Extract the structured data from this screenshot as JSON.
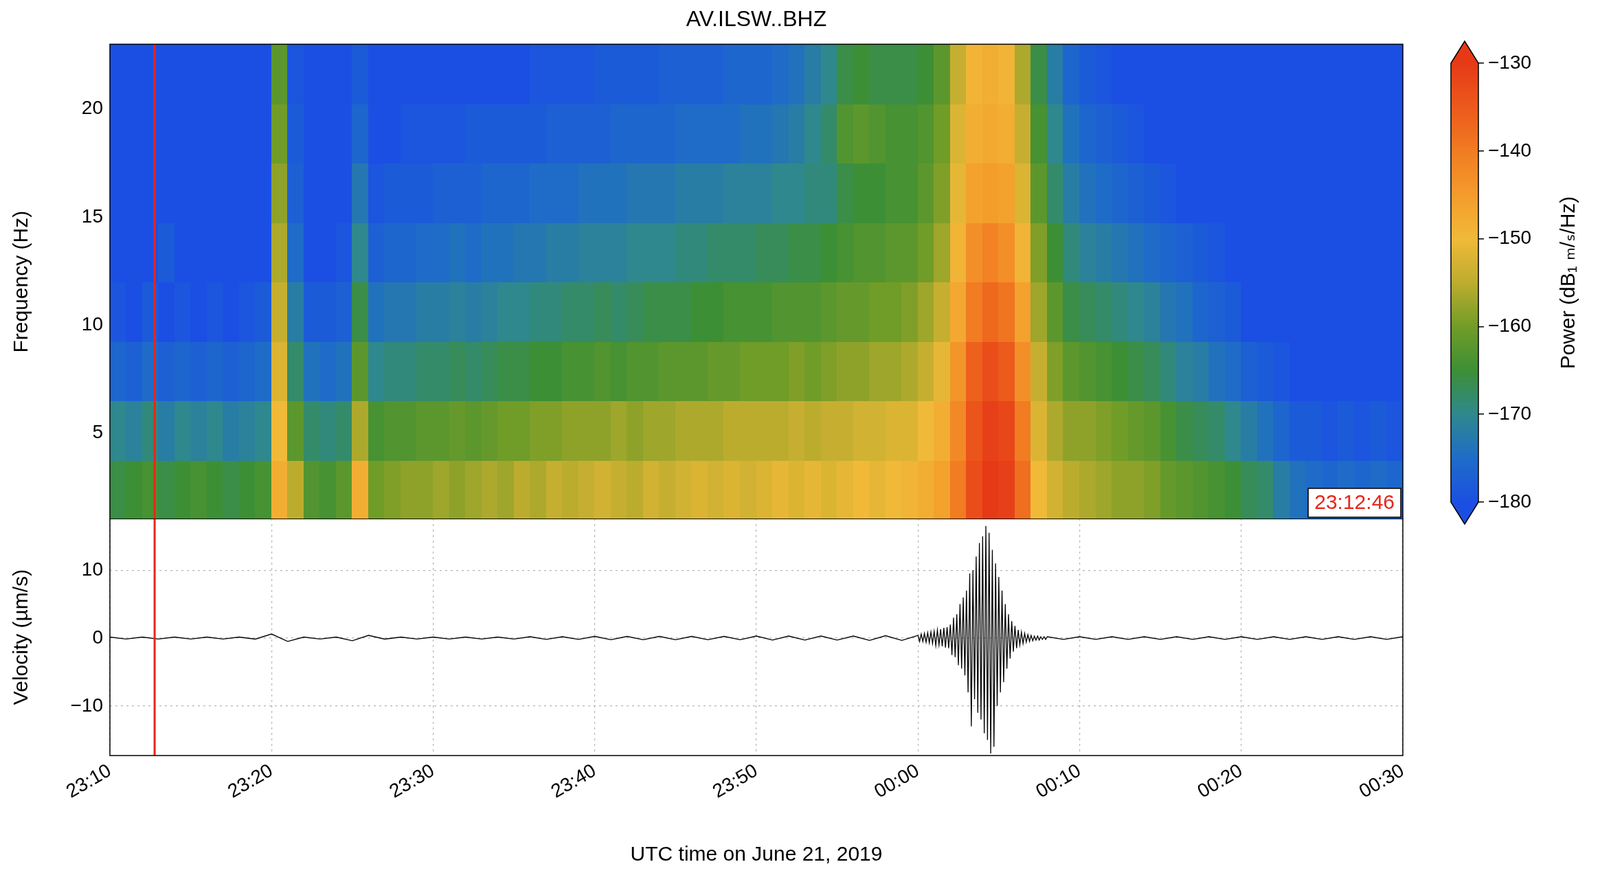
{
  "chart_data": [
    {
      "type": "heatmap",
      "title": "AV.ILSW..BHZ",
      "y_label": "Frequency (Hz)",
      "x_bins": [
        0,
        1,
        2,
        3,
        4,
        5,
        6,
        7,
        8,
        9,
        10,
        11,
        12,
        13,
        14,
        15,
        16,
        17,
        18,
        19,
        20,
        21,
        22,
        23,
        24,
        25,
        26,
        27,
        28,
        29,
        30,
        31,
        32,
        33,
        34,
        35,
        36,
        37,
        38,
        39,
        40,
        41,
        42,
        43,
        44,
        45,
        46,
        47,
        48,
        49,
        50,
        51,
        52,
        53,
        54,
        55,
        56,
        57,
        58,
        59,
        60,
        61,
        62,
        63,
        64,
        65,
        66,
        67,
        68,
        69,
        70,
        71,
        72,
        73,
        74,
        75,
        76,
        77,
        78,
        79,
        80
      ],
      "y_bins": [
        1,
        3.75,
        6.5,
        9.25,
        12,
        14.75,
        17.5,
        20.25,
        23
      ],
      "cells": [
        [
          -166,
          -165,
          -164,
          -166,
          -165,
          -164,
          -165,
          -166,
          -165,
          -164,
          -148,
          -155,
          -163,
          -164,
          -162,
          -148,
          -160,
          -159,
          -158,
          -158,
          -157,
          -158,
          -157,
          -156,
          -157,
          -155,
          -156,
          -154,
          -155,
          -154,
          -153,
          -154,
          -155,
          -153,
          -154,
          -153,
          -152,
          -153,
          -152,
          -153,
          -152,
          -151,
          -152,
          -151,
          -152,
          -151,
          -150,
          -151,
          -150,
          -149,
          -148,
          -146,
          -140,
          -133,
          -130,
          -131,
          -138,
          -150,
          -153,
          -155,
          -156,
          -157,
          -158,
          -158,
          -159,
          -161,
          -162,
          -163,
          -164,
          -165,
          -167,
          -168,
          -172,
          -174,
          -175,
          -176,
          -175,
          -176,
          -175,
          -176
        ],
        [
          -170,
          -171,
          -169,
          -172,
          -170,
          -171,
          -170,
          -172,
          -171,
          -170,
          -150,
          -162,
          -168,
          -169,
          -168,
          -156,
          -164,
          -163,
          -163,
          -162,
          -162,
          -161,
          -162,
          -161,
          -160,
          -160,
          -159,
          -159,
          -158,
          -158,
          -158,
          -157,
          -158,
          -157,
          -157,
          -156,
          -156,
          -156,
          -155,
          -155,
          -155,
          -155,
          -154,
          -155,
          -154,
          -154,
          -153,
          -153,
          -152,
          -152,
          -150,
          -148,
          -142,
          -134,
          -131,
          -132,
          -140,
          -152,
          -156,
          -158,
          -158,
          -159,
          -160,
          -161,
          -162,
          -164,
          -166,
          -167,
          -168,
          -170,
          -172,
          -174,
          -176,
          -178,
          -178,
          -179,
          -178,
          -179,
          -178,
          -179
        ],
        [
          -176,
          -177,
          -175,
          -177,
          -176,
          -177,
          -176,
          -177,
          -176,
          -175,
          -152,
          -168,
          -174,
          -175,
          -174,
          -162,
          -170,
          -169,
          -169,
          -168,
          -168,
          -167,
          -168,
          -167,
          -166,
          -166,
          -165,
          -165,
          -164,
          -164,
          -163,
          -164,
          -163,
          -163,
          -162,
          -162,
          -162,
          -161,
          -161,
          -160,
          -160,
          -160,
          -159,
          -160,
          -159,
          -158,
          -158,
          -157,
          -157,
          -156,
          -154,
          -151,
          -144,
          -136,
          -133,
          -135,
          -143,
          -154,
          -159,
          -162,
          -163,
          -164,
          -165,
          -166,
          -167,
          -169,
          -171,
          -172,
          -174,
          -175,
          -177,
          -178,
          -179,
          -180,
          -180,
          -180,
          -180,
          -180,
          -180,
          -180
        ],
        [
          -179,
          -180,
          -178,
          -180,
          -179,
          -180,
          -179,
          -180,
          -179,
          -178,
          -154,
          -172,
          -178,
          -178,
          -177,
          -166,
          -174,
          -173,
          -173,
          -172,
          -172,
          -171,
          -172,
          -171,
          -170,
          -170,
          -169,
          -169,
          -168,
          -168,
          -167,
          -168,
          -167,
          -166,
          -166,
          -166,
          -165,
          -165,
          -164,
          -164,
          -164,
          -163,
          -163,
          -163,
          -162,
          -161,
          -161,
          -160,
          -160,
          -159,
          -157,
          -154,
          -147,
          -140,
          -137,
          -139,
          -146,
          -157,
          -162,
          -166,
          -167,
          -168,
          -169,
          -170,
          -171,
          -173,
          -174,
          -176,
          -177,
          -178,
          -180,
          -180,
          -180,
          -180,
          -180,
          -180,
          -180,
          -180,
          -180,
          -180
        ],
        [
          -180,
          -180,
          -180,
          -178,
          -180,
          -180,
          -180,
          -180,
          -180,
          -180,
          -156,
          -175,
          -180,
          -180,
          -179,
          -170,
          -177,
          -176,
          -176,
          -175,
          -175,
          -174,
          -175,
          -174,
          -174,
          -173,
          -173,
          -172,
          -172,
          -171,
          -171,
          -171,
          -170,
          -170,
          -170,
          -169,
          -169,
          -168,
          -168,
          -168,
          -167,
          -167,
          -166,
          -166,
          -165,
          -164,
          -163,
          -163,
          -162,
          -162,
          -160,
          -157,
          -149,
          -143,
          -141,
          -143,
          -149,
          -159,
          -165,
          -169,
          -171,
          -172,
          -173,
          -174,
          -175,
          -176,
          -177,
          -178,
          -179,
          -180,
          -180,
          -180,
          -180,
          -180,
          -180,
          -180,
          -180,
          -180,
          -180,
          -180
        ],
        [
          -180,
          -180,
          -180,
          -180,
          -180,
          -180,
          -180,
          -180,
          -180,
          -180,
          -158,
          -177,
          -180,
          -180,
          -180,
          -173,
          -179,
          -178,
          -178,
          -178,
          -177,
          -177,
          -177,
          -176,
          -176,
          -176,
          -175,
          -175,
          -175,
          -174,
          -174,
          -174,
          -173,
          -173,
          -173,
          -172,
          -172,
          -172,
          -171,
          -171,
          -171,
          -170,
          -170,
          -169,
          -169,
          -166,
          -165,
          -165,
          -164,
          -164,
          -162,
          -159,
          -151,
          -146,
          -145,
          -146,
          -152,
          -162,
          -168,
          -172,
          -174,
          -175,
          -176,
          -177,
          -178,
          -179,
          -180,
          -180,
          -180,
          -180,
          -180,
          -180,
          -180,
          -180,
          -180,
          -180,
          -180,
          -180,
          -180,
          -180
        ],
        [
          -180,
          -180,
          -180,
          -180,
          -180,
          -180,
          -180,
          -180,
          -180,
          -180,
          -160,
          -178,
          -180,
          -180,
          -180,
          -176,
          -180,
          -180,
          -179,
          -179,
          -179,
          -179,
          -178,
          -178,
          -178,
          -178,
          -178,
          -177,
          -177,
          -177,
          -177,
          -176,
          -176,
          -176,
          -176,
          -175,
          -175,
          -175,
          -175,
          -174,
          -174,
          -173,
          -172,
          -170,
          -168,
          -163,
          -162,
          -163,
          -164,
          -164,
          -163,
          -160,
          -152,
          -148,
          -147,
          -148,
          -154,
          -164,
          -170,
          -174,
          -176,
          -177,
          -178,
          -179,
          -180,
          -180,
          -180,
          -180,
          -180,
          -180,
          -180,
          -180,
          -180,
          -180,
          -180,
          -180,
          -180,
          -180,
          -180,
          -180
        ],
        [
          -180,
          -180,
          -180,
          -180,
          -180,
          -180,
          -180,
          -180,
          -180,
          -180,
          -162,
          -179,
          -180,
          -180,
          -180,
          -178,
          -180,
          -180,
          -180,
          -180,
          -180,
          -180,
          -180,
          -180,
          -180,
          -180,
          -179,
          -179,
          -179,
          -179,
          -178,
          -178,
          -178,
          -178,
          -177,
          -177,
          -177,
          -177,
          -176,
          -176,
          -176,
          -175,
          -174,
          -172,
          -170,
          -166,
          -165,
          -166,
          -166,
          -166,
          -165,
          -162,
          -154,
          -149,
          -148,
          -149,
          -156,
          -166,
          -172,
          -176,
          -178,
          -179,
          -180,
          -180,
          -180,
          -180,
          -180,
          -180,
          -180,
          -180,
          -180,
          -180,
          -180,
          -180,
          -180,
          -180,
          -180,
          -180,
          -180,
          -180
        ]
      ],
      "xlim": [
        0,
        80
      ],
      "xticks": [
        {
          "value": 0,
          "label": "23:10"
        },
        {
          "value": 10,
          "label": "23:20"
        },
        {
          "value": 20,
          "label": "23:30"
        },
        {
          "value": 30,
          "label": "23:40"
        },
        {
          "value": 40,
          "label": "23:50"
        },
        {
          "value": 50,
          "label": "00:00"
        },
        {
          "value": 60,
          "label": "00:10"
        },
        {
          "value": 70,
          "label": "00:20"
        },
        {
          "value": 80,
          "label": "00:30"
        }
      ],
      "ylim": [
        1,
        23
      ],
      "yticks": [
        5,
        10,
        15,
        20
      ],
      "grid": true,
      "tick_labels": "y",
      "colorbar": {
        "label": "Power (dB₁ ₘ/ₛ/Hz)",
        "range": [
          -180,
          -130
        ],
        "ticks": [
          {
            "value": -180,
            "label": "−180"
          },
          {
            "value": -170,
            "label": "−170"
          },
          {
            "value": -160,
            "label": "−160"
          },
          {
            "value": -150,
            "label": "−150"
          },
          {
            "value": -140,
            "label": "−140"
          },
          {
            "value": -130,
            "label": "−130"
          }
        ]
      },
      "annotations": [
        {
          "text": "23:12:46",
          "x": 2.7667,
          "color": "#e8251b"
        }
      ]
    },
    {
      "type": "line",
      "x_label": "UTC time on June 21, 2019",
      "y_label": "Velocity (µm/s)",
      "x": [
        0,
        1,
        2,
        3,
        4,
        5,
        6,
        7,
        8,
        9,
        10,
        11,
        12,
        13,
        14,
        15,
        16,
        17,
        18,
        19,
        20,
        21,
        22,
        23,
        24,
        25,
        26,
        27,
        28,
        29,
        30,
        31,
        32,
        33,
        34,
        35,
        36,
        37,
        38,
        39,
        40,
        41,
        42,
        43,
        44,
        45,
        46,
        47,
        48,
        49,
        50,
        50.1,
        50.2,
        50.3,
        50.4,
        50.5,
        50.6,
        50.7,
        50.8,
        50.9,
        51,
        51.1,
        51.2,
        51.3,
        51.4,
        51.5,
        51.6,
        51.7,
        51.8,
        51.9,
        52,
        52.1,
        52.2,
        52.3,
        52.4,
        52.5,
        52.6,
        52.7,
        52.8,
        52.9,
        53,
        53.1,
        53.2,
        53.3,
        53.4,
        53.5,
        53.6,
        53.7,
        53.8,
        53.9,
        54,
        54.1,
        54.2,
        54.3,
        54.4,
        54.5,
        54.6,
        54.7,
        54.8,
        54.9,
        55,
        55.1,
        55.2,
        55.3,
        55.4,
        55.5,
        55.6,
        55.7,
        55.8,
        55.9,
        56,
        56.1,
        56.2,
        56.3,
        56.4,
        56.5,
        56.6,
        56.7,
        56.8,
        56.9,
        57,
        57.1,
        57.2,
        57.3,
        57.4,
        57.5,
        57.6,
        57.7,
        57.8,
        57.9,
        58,
        59,
        60,
        61,
        62,
        63,
        64,
        65,
        66,
        67,
        68,
        69,
        70,
        71,
        72,
        73,
        74,
        75,
        76,
        77,
        78,
        79,
        80
      ],
      "values": [
        0.15,
        -0.15,
        0.15,
        -0.15,
        0.15,
        -0.15,
        0.15,
        -0.15,
        0.15,
        -0.15,
        0.6,
        -0.5,
        0.15,
        -0.15,
        0.15,
        -0.4,
        0.4,
        -0.15,
        0.15,
        -0.15,
        0.15,
        -0.15,
        0.15,
        -0.15,
        0.15,
        -0.15,
        0.2,
        -0.2,
        0.2,
        -0.2,
        0.25,
        -0.25,
        0.25,
        -0.25,
        0.25,
        -0.25,
        0.25,
        -0.25,
        0.25,
        -0.25,
        0.3,
        -0.3,
        0.3,
        -0.3,
        0.3,
        -0.3,
        0.3,
        -0.35,
        0.35,
        -0.35,
        0.4,
        -0.5,
        0.6,
        -0.5,
        0.7,
        -0.6,
        0.8,
        -0.7,
        0.9,
        -0.8,
        1.0,
        -1.1,
        1.2,
        -1.0,
        1.3,
        -1.2,
        1.5,
        -1.4,
        1.6,
        -1.5,
        2.0,
        -2.5,
        3.0,
        -2.8,
        3.5,
        -4.0,
        5.0,
        -4.5,
        6.0,
        -5.5,
        7.0,
        -8.0,
        9.5,
        -13.0,
        10.0,
        -9.0,
        12.0,
        -11.0,
        14.0,
        -12.0,
        15.0,
        -14.0,
        16.5,
        -15.0,
        15.5,
        -17.0,
        13.0,
        -16.0,
        11.0,
        -10.0,
        9.0,
        -8.0,
        7.0,
        -6.5,
        5.0,
        -4.5,
        3.5,
        -3.0,
        2.5,
        -2.0,
        1.8,
        -1.5,
        1.2,
        -1.0,
        0.9,
        -0.8,
        0.7,
        -0.6,
        0.5,
        -0.5,
        0.4,
        -0.4,
        0.3,
        -0.3,
        0.3,
        -0.3,
        0.2,
        -0.2,
        0.2,
        -0.2,
        0.2,
        -0.2,
        0.2,
        -0.2,
        0.2,
        -0.2,
        0.2,
        -0.2,
        0.2,
        -0.2,
        0.2,
        -0.2,
        0.2,
        -0.2,
        0.2,
        -0.2,
        0.2,
        -0.2,
        0.2,
        -0.2,
        0.2,
        -0.2,
        0.2
      ],
      "color": "#000000",
      "xlim": [
        0,
        80
      ],
      "xticks": [
        {
          "value": 0,
          "label": "23:10"
        },
        {
          "value": 10,
          "label": "23:20"
        },
        {
          "value": 20,
          "label": "23:30"
        },
        {
          "value": 30,
          "label": "23:40"
        },
        {
          "value": 40,
          "label": "23:50"
        },
        {
          "value": 50,
          "label": "00:00"
        },
        {
          "value": 60,
          "label": "00:10"
        },
        {
          "value": 70,
          "label": "00:20"
        },
        {
          "value": 80,
          "label": "00:30"
        }
      ],
      "ylim": [
        -17.3,
        17.6
      ],
      "yticks": [
        {
          "value": -10,
          "label": "−10"
        },
        0,
        10
      ],
      "grid": true,
      "annotations": [
        {
          "x": 2.7667,
          "color": "#e8251b"
        }
      ]
    }
  ]
}
